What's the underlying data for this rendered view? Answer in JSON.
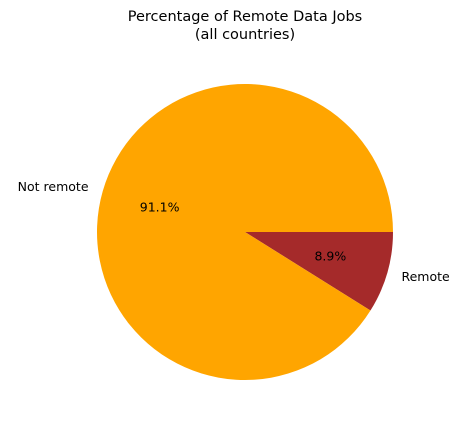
{
  "chart_data": {
    "type": "pie",
    "title": "Percentage of Remote Data Jobs",
    "subtitle": "(all countries)",
    "slices": [
      {
        "label": "Remote",
        "value": 8.9,
        "pct_label": "8.9%",
        "color": "#a52a2a"
      },
      {
        "label": "Not remote",
        "value": 91.1,
        "pct_label": "91.1%",
        "color": "#ffa500"
      }
    ],
    "start_angle_deg": 0,
    "direction": "clockwise"
  }
}
